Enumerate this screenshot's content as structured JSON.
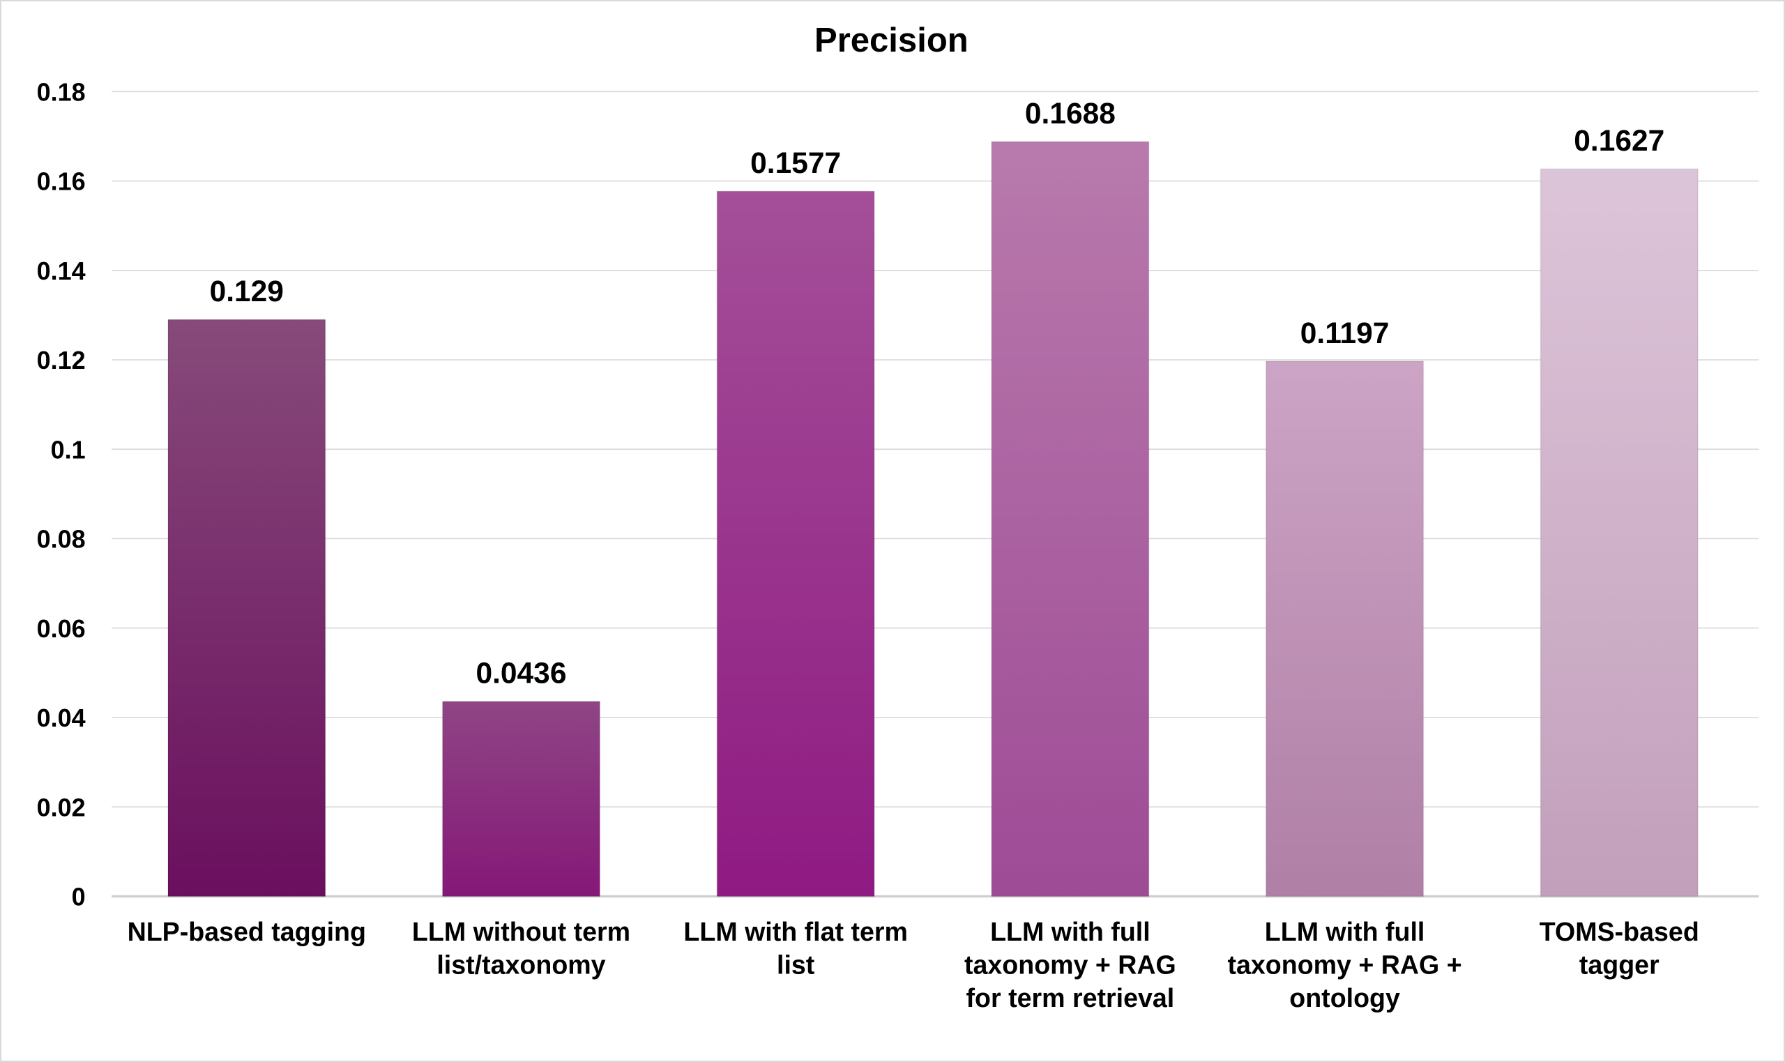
{
  "chart_data": {
    "type": "bar",
    "title": "Precision",
    "xlabel": "",
    "ylabel": "",
    "ylim": [
      0,
      0.18
    ],
    "yticks": [
      "0",
      "0.02",
      "0.04",
      "0.06",
      "0.08",
      "0.1",
      "0.12",
      "0.14",
      "0.16",
      "0.18"
    ],
    "grid": true,
    "categories": [
      [
        "NLP-based tagging"
      ],
      [
        "LLM without term",
        "list/taxonomy"
      ],
      [
        "LLM with flat term",
        "list"
      ],
      [
        "LLM with full",
        "taxonomy + RAG",
        "for term retrieval"
      ],
      [
        "LLM with full",
        "taxonomy + RAG +",
        "ontology"
      ],
      [
        "TOMS-based",
        "tagger"
      ]
    ],
    "values": [
      0.129,
      0.0436,
      0.1577,
      0.1688,
      0.1197,
      0.1627
    ],
    "data_labels": [
      "0.129",
      "0.0436",
      "0.1577",
      "0.1688",
      "0.1197",
      "0.1627"
    ],
    "colors": [
      [
        "#874a7a",
        "#6a0f5e"
      ],
      [
        "#8f4585",
        "#851877"
      ],
      [
        "#a44f99",
        "#8f1a82"
      ],
      [
        "#b87aac",
        "#9e4b96"
      ],
      [
        "#cca4c5",
        "#b07fa6"
      ],
      [
        "#ddc5d9",
        "#c29fbb"
      ]
    ]
  }
}
